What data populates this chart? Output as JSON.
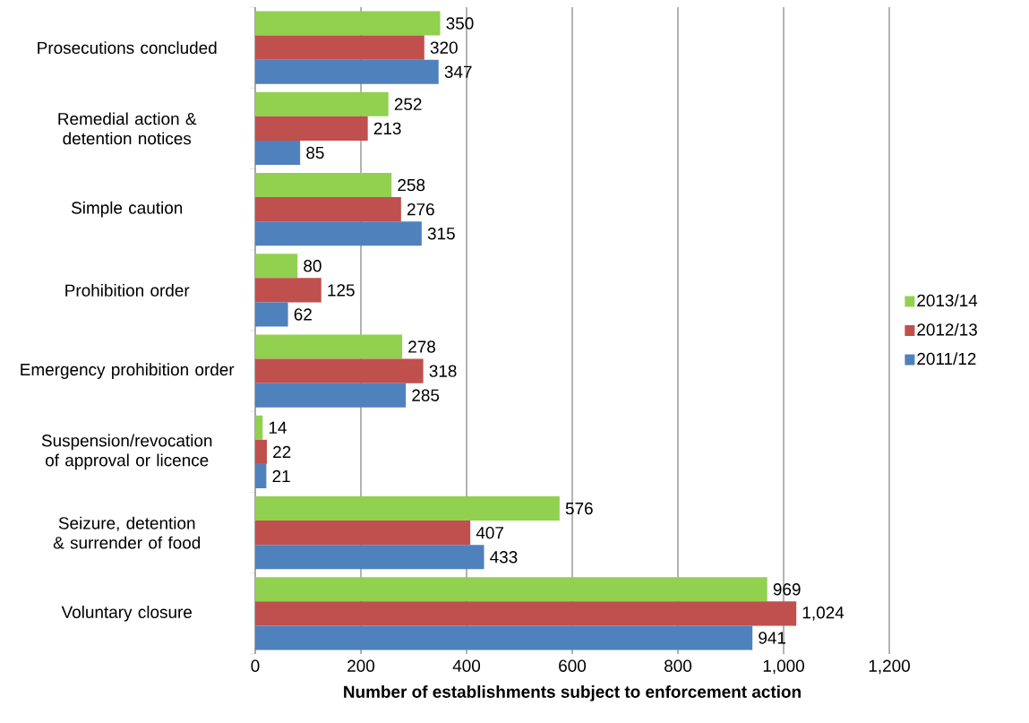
{
  "chart_data": {
    "type": "bar",
    "orientation": "horizontal",
    "xlabel": "Number of establishments subject to enforcement action",
    "categories": [
      "Prosecutions concluded",
      "Remedial action & detention notices",
      "Simple caution",
      "Prohibition order",
      "Emergency prohibition order",
      "Suspension/revocation of approval or licence",
      "Seizure, detention & surrender of food",
      "Voluntary closure"
    ],
    "series": [
      {
        "name": "2013/14",
        "color": "#92d050",
        "values": [
          350,
          252,
          258,
          80,
          278,
          14,
          576,
          969
        ],
        "value_labels": [
          "350",
          "252",
          "258",
          "80",
          "278",
          "14",
          "576",
          "969"
        ]
      },
      {
        "name": "2012/13",
        "color": "#c0504d",
        "values": [
          320,
          213,
          276,
          125,
          318,
          22,
          407,
          1024
        ],
        "value_labels": [
          "320",
          "213",
          "276",
          "125",
          "318",
          "22",
          "407",
          "1,024"
        ]
      },
      {
        "name": "2011/12",
        "color": "#4f81bd",
        "values": [
          347,
          85,
          315,
          62,
          285,
          21,
          433,
          941
        ],
        "value_labels": [
          "347",
          "85",
          "315",
          "62",
          "285",
          "21",
          "433",
          "941"
        ]
      }
    ],
    "xlim": [
      0,
      1200
    ],
    "xticks": [
      0,
      200,
      400,
      600,
      800,
      {
        "value": 1000,
        "label": "1,000"
      },
      {
        "value": 1200,
        "label": "1,200"
      }
    ],
    "grid": "x",
    "legend": "right"
  }
}
